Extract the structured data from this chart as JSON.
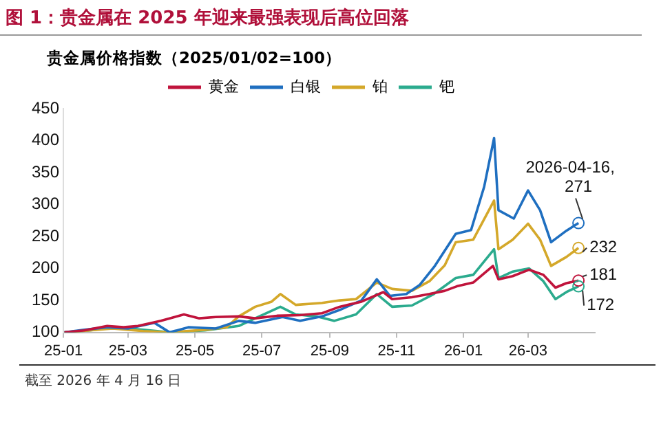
{
  "chart_data": {
    "type": "line",
    "title": "图 1：贵金属在 2025 年迎来最强表现后高位回落",
    "subtitle": "贵金属价格指数（2025/01/02=100）",
    "series": [
      {
        "name": "黄金",
        "color": "#c0143c",
        "x": [
          "2025-01-02",
          "2025-01-20",
          "2025-02-10",
          "2025-02-25",
          "2025-03-10",
          "2025-03-31",
          "2025-04-21",
          "2025-05-05",
          "2025-05-20",
          "2025-06-10",
          "2025-06-25",
          "2025-07-15",
          "2025-08-05",
          "2025-08-25",
          "2025-09-10",
          "2025-09-30",
          "2025-10-20",
          "2025-10-28",
          "2025-11-15",
          "2025-12-01",
          "2025-12-15",
          "2025-12-26",
          "2026-01-10",
          "2026-01-28",
          "2026-02-02",
          "2026-02-15",
          "2026-03-02",
          "2026-03-15",
          "2026-03-26",
          "2026-04-05",
          "2026-04-16"
        ],
        "values": [
          100,
          103,
          110,
          108,
          110,
          118,
          128,
          122,
          124,
          125,
          122,
          126,
          127,
          130,
          140,
          148,
          163,
          152,
          155,
          160,
          165,
          172,
          178,
          204,
          183,
          188,
          198,
          190,
          170,
          177,
          181
        ]
      },
      {
        "name": "白银",
        "color": "#1f6fc0",
        "x": [
          "2025-01-02",
          "2025-01-20",
          "2025-02-10",
          "2025-03-01",
          "2025-03-25",
          "2025-04-08",
          "2025-04-25",
          "2025-05-20",
          "2025-06-10",
          "2025-06-25",
          "2025-07-20",
          "2025-08-05",
          "2025-08-25",
          "2025-09-10",
          "2025-09-30",
          "2025-10-14",
          "2025-10-26",
          "2025-11-10",
          "2025-11-22",
          "2025-12-06",
          "2025-12-25",
          "2026-01-08",
          "2026-01-20",
          "2026-01-29",
          "2026-02-02",
          "2026-02-16",
          "2026-03-01",
          "2026-03-12",
          "2026-03-22",
          "2026-04-05",
          "2026-04-16"
        ],
        "values": [
          100,
          104,
          108,
          106,
          115,
          100,
          108,
          106,
          118,
          115,
          124,
          118,
          125,
          135,
          150,
          183,
          157,
          160,
          174,
          204,
          254,
          260,
          328,
          404,
          291,
          278,
          322,
          291,
          241,
          259,
          271
        ]
      },
      {
        "name": "铂",
        "color": "#d4a82a",
        "x": [
          "2025-01-02",
          "2025-01-25",
          "2025-02-15",
          "2025-03-15",
          "2025-04-08",
          "2025-05-10",
          "2025-05-30",
          "2025-06-10",
          "2025-06-25",
          "2025-07-10",
          "2025-07-18",
          "2025-08-01",
          "2025-08-25",
          "2025-09-10",
          "2025-09-25",
          "2025-10-14",
          "2025-10-28",
          "2025-11-15",
          "2025-12-01",
          "2025-12-15",
          "2025-12-25",
          "2026-01-10",
          "2026-01-29",
          "2026-02-02",
          "2026-02-15",
          "2026-03-01",
          "2026-03-12",
          "2026-03-22",
          "2026-04-05",
          "2026-04-16"
        ],
        "values": [
          100,
          103,
          106,
          102,
          100,
          104,
          108,
          125,
          140,
          148,
          160,
          143,
          146,
          150,
          152,
          178,
          168,
          165,
          180,
          205,
          241,
          245,
          306,
          230,
          245,
          270,
          245,
          204,
          218,
          232
        ]
      },
      {
        "name": "钯",
        "color": "#2bab8e",
        "x": [
          "2025-01-02",
          "2025-01-25",
          "2025-02-15",
          "2025-03-15",
          "2025-04-08",
          "2025-05-10",
          "2025-06-10",
          "2025-06-25",
          "2025-07-18",
          "2025-08-01",
          "2025-08-20",
          "2025-09-05",
          "2025-09-25",
          "2025-10-14",
          "2025-10-28",
          "2025-11-15",
          "2025-12-05",
          "2025-12-25",
          "2026-01-10",
          "2026-01-29",
          "2026-02-02",
          "2026-02-15",
          "2026-03-02",
          "2026-03-15",
          "2026-03-26",
          "2026-04-05",
          "2026-04-16"
        ],
        "values": [
          100,
          103,
          108,
          104,
          100,
          103,
          110,
          122,
          140,
          128,
          125,
          118,
          128,
          160,
          140,
          142,
          160,
          185,
          190,
          230,
          185,
          195,
          200,
          180,
          152,
          163,
          172
        ]
      }
    ],
    "xlim": [
      "2025-01-01",
      "2026-05-01"
    ],
    "xticks": [
      {
        "value": "2025-01-01",
        "label": "25-01"
      },
      {
        "value": "2025-03-01",
        "label": "25-03"
      },
      {
        "value": "2025-05-01",
        "label": "25-05"
      },
      {
        "value": "2025-07-01",
        "label": "25-07"
      },
      {
        "value": "2025-09-01",
        "label": "25-09"
      },
      {
        "value": "2025-11-01",
        "label": "25-11"
      },
      {
        "value": "2026-01-01",
        "label": "26-01"
      },
      {
        "value": "2026-03-01",
        "label": "26-03"
      }
    ],
    "ylim": [
      100,
      450
    ],
    "yticks": [
      100,
      150,
      200,
      250,
      300,
      350,
      400,
      450
    ],
    "grid": false,
    "legend": "top",
    "marker": "none",
    "line_style": "solid",
    "annotations": [
      {
        "text": "2026-04-16, 271",
        "x": "2026-04-16",
        "y": 271
      },
      {
        "text": "232",
        "x": "2026-04-16",
        "y": 232
      },
      {
        "text": "181",
        "x": "2026-04-16",
        "y": 181
      },
      {
        "text": "172",
        "x": "2026-04-16",
        "y": 172
      },
      "截至 2026 年 4 月 16 日"
    ]
  }
}
